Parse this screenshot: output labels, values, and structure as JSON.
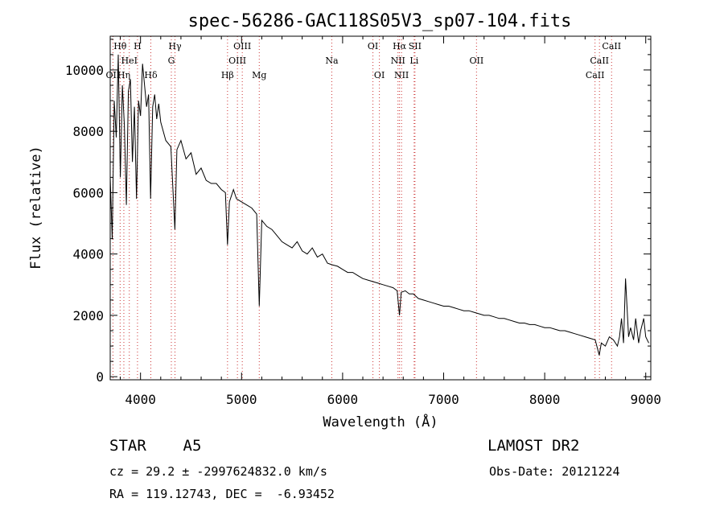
{
  "chart_data": {
    "type": "line",
    "title": "spec-56286-GAC118S05V3_sp07-104.fits",
    "xlabel": "Wavelength (Å)",
    "ylabel": "Flux (relative)",
    "xlim": [
      3700,
      9050
    ],
    "ylim": [
      -100,
      11100
    ],
    "xticks": [
      4000,
      5000,
      6000,
      7000,
      8000,
      9000
    ],
    "xtick_labels": [
      "4000",
      "5000",
      "6000",
      "7000",
      "8000",
      "9000"
    ],
    "yticks": [
      0,
      2000,
      4000,
      6000,
      8000,
      10000
    ],
    "ytick_labels": [
      "0",
      "2000",
      "4000",
      "6000",
      "8000",
      "10000"
    ],
    "grid": false,
    "series": [
      {
        "color": "#000000",
        "x": [
          3700,
          3720,
          3740,
          3760,
          3780,
          3800,
          3820,
          3840,
          3860,
          3880,
          3900,
          3920,
          3940,
          3960,
          3980,
          4000,
          4020,
          4040,
          4060,
          4080,
          4100,
          4120,
          4140,
          4160,
          4180,
          4200,
          4250,
          4300,
          4340,
          4360,
          4400,
          4450,
          4500,
          4550,
          4600,
          4650,
          4700,
          4750,
          4800,
          4840,
          4861,
          4880,
          4920,
          4950,
          5000,
          5050,
          5100,
          5150,
          5175,
          5200,
          5250,
          5300,
          5350,
          5400,
          5450,
          5500,
          5550,
          5600,
          5650,
          5700,
          5750,
          5800,
          5850,
          5893,
          5950,
          6000,
          6050,
          6100,
          6150,
          6200,
          6250,
          6300,
          6350,
          6400,
          6450,
          6500,
          6540,
          6563,
          6580,
          6620,
          6660,
          6700,
          6750,
          6800,
          6850,
          6900,
          6950,
          7000,
          7050,
          7100,
          7150,
          7200,
          7250,
          7300,
          7350,
          7400,
          7450,
          7500,
          7550,
          7600,
          7650,
          7700,
          7750,
          7800,
          7850,
          7900,
          7950,
          8000,
          8050,
          8100,
          8150,
          8200,
          8250,
          8300,
          8350,
          8400,
          8450,
          8500,
          8540,
          8560,
          8600,
          8640,
          8680,
          8720,
          8740,
          8760,
          8780,
          8800,
          8830,
          8850,
          8880,
          8900,
          8930,
          8950,
          8980,
          9000,
          9030
        ],
        "y": [
          6500,
          4500,
          9000,
          7800,
          10500,
          6500,
          9500,
          8200,
          5600,
          9300,
          9700,
          7000,
          8800,
          5800,
          9000,
          8500,
          10200,
          9500,
          8800,
          9200,
          5800,
          8800,
          9200,
          8400,
          8900,
          8300,
          7700,
          7500,
          4800,
          7400,
          7700,
          7100,
          7300,
          6600,
          6800,
          6400,
          6300,
          6300,
          6100,
          6000,
          4300,
          5700,
          6100,
          5800,
          5700,
          5600,
          5500,
          5300,
          2300,
          5100,
          4900,
          4800,
          4600,
          4400,
          4300,
          4200,
          4400,
          4100,
          4000,
          4200,
          3900,
          4000,
          3700,
          3650,
          3600,
          3500,
          3400,
          3400,
          3300,
          3200,
          3150,
          3100,
          3050,
          3000,
          2950,
          2900,
          2800,
          2000,
          2750,
          2800,
          2700,
          2700,
          2550,
          2500,
          2450,
          2400,
          2350,
          2300,
          2300,
          2250,
          2200,
          2150,
          2150,
          2100,
          2050,
          2000,
          2000,
          1950,
          1900,
          1900,
          1850,
          1800,
          1750,
          1750,
          1700,
          1700,
          1650,
          1600,
          1600,
          1550,
          1500,
          1500,
          1450,
          1400,
          1350,
          1300,
          1250,
          1200,
          700,
          1100,
          1000,
          1300,
          1200,
          1000,
          1300,
          1900,
          1100,
          3200,
          1300,
          1600,
          1200,
          1900,
          1100,
          1500,
          1900,
          1300,
          1100
        ]
      }
    ],
    "lines": [
      {
        "label": "OII",
        "x": 3727,
        "row": 3
      },
      {
        "label": "Hθ",
        "x": 3798,
        "row": 1
      },
      {
        "label": "Hη",
        "x": 3835,
        "row": 3
      },
      {
        "label": "HeI",
        "x": 3889,
        "row": 2
      },
      {
        "label": "H",
        "x": 3970,
        "row": 1
      },
      {
        "label": "Hδ",
        "x": 4102,
        "row": 3
      },
      {
        "label": "Hγ",
        "x": 4341,
        "row": 1
      },
      {
        "label": "G",
        "x": 4305,
        "row": 2
      },
      {
        "label": "Hβ",
        "x": 4861,
        "row": 3
      },
      {
        "label": "OIII",
        "x": 5007,
        "row": 1
      },
      {
        "label": "OIII",
        "x": 4959,
        "row": 2
      },
      {
        "label": "Mg",
        "x": 5175,
        "row": 3
      },
      {
        "label": "Na",
        "x": 5893,
        "row": 2
      },
      {
        "label": "OI",
        "x": 6300,
        "row": 1
      },
      {
        "label": "OI",
        "x": 6364,
        "row": 3
      },
      {
        "label": "Hα",
        "x": 6563,
        "row": 1
      },
      {
        "label": "SII",
        "x": 6716,
        "row": 1
      },
      {
        "label": "NII",
        "x": 6548,
        "row": 2
      },
      {
        "label": "NII",
        "x": 6583,
        "row": 3
      },
      {
        "label": "Li",
        "x": 6708,
        "row": 2
      },
      {
        "label": "OII",
        "x": 7325,
        "row": 2
      },
      {
        "label": "CaII",
        "x": 8662,
        "row": 1
      },
      {
        "label": "CaII",
        "x": 8542,
        "row": 2
      },
      {
        "label": "CaII",
        "x": 8498,
        "row": 3
      }
    ]
  },
  "info": {
    "object": "STAR    A5",
    "survey": "LAMOST DR2",
    "cz": "cz = 29.2 ± -2997624832.0 km/s",
    "obs_date": "Obs-Date: 20121224",
    "radec": "RA = 119.12743, DEC =  -6.93452"
  },
  "colors": {
    "line_marker": "#cc3333",
    "spectrum": "#000000",
    "axes": "#000000"
  }
}
